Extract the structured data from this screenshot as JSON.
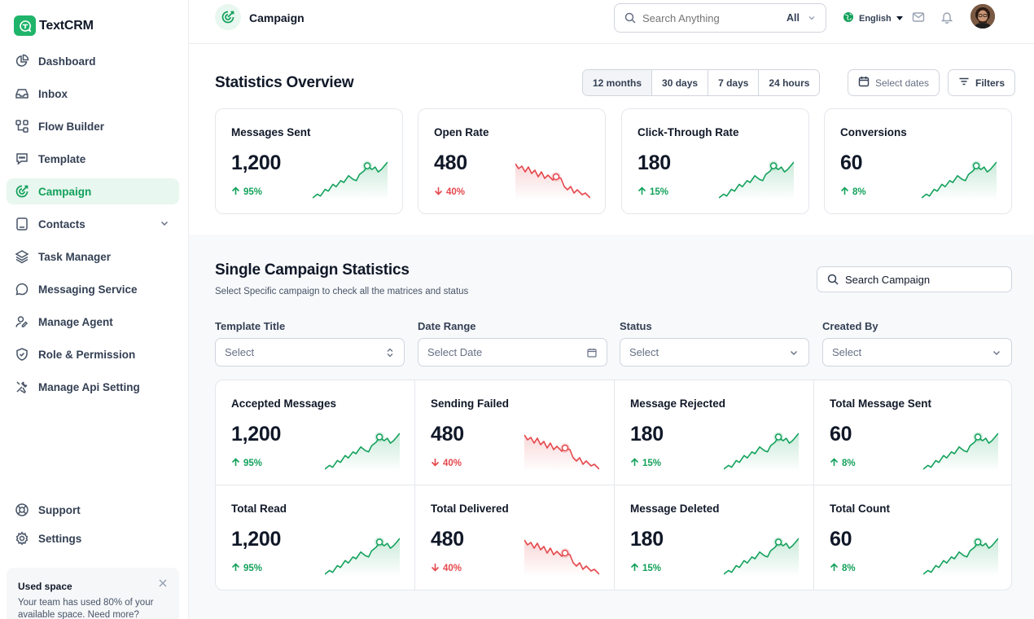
{
  "app": {
    "name": "TextCRM"
  },
  "sidebar": {
    "items": [
      {
        "label": "Dashboard",
        "icon": "pie-chart-icon"
      },
      {
        "label": "Inbox",
        "icon": "inbox-icon"
      },
      {
        "label": "Flow Builder",
        "icon": "flow-icon"
      },
      {
        "label": "Template",
        "icon": "message-icon"
      },
      {
        "label": "Campaign",
        "icon": "campaign-icon",
        "active": true
      },
      {
        "label": "Contacts",
        "icon": "contacts-icon",
        "has_children": true
      },
      {
        "label": "Task Manager",
        "icon": "layers-icon"
      },
      {
        "label": "Messaging Service",
        "icon": "chat-icon"
      },
      {
        "label": "Manage Agent",
        "icon": "agent-icon"
      },
      {
        "label": "Role & Permission",
        "icon": "shield-icon"
      },
      {
        "label": "Manage Api Setting",
        "icon": "tools-icon"
      }
    ],
    "bottom": [
      {
        "label": "Support",
        "icon": "lifebuoy-icon"
      },
      {
        "label": "Settings",
        "icon": "gear-icon"
      }
    ],
    "used_space": {
      "title": "Used space",
      "text": "Your team has used 80% of your available space. Need more?"
    }
  },
  "header": {
    "title": "Campaign",
    "search_placeholder": "Search Anything",
    "search_scope": "All",
    "language": "English"
  },
  "overview": {
    "title": "Statistics Overview",
    "ranges": [
      "12 months",
      "30 days",
      "7 days",
      "24 hours"
    ],
    "active_range": "12 months",
    "select_dates": "Select dates",
    "filters": "Filters",
    "cards": [
      {
        "title": "Messages Sent",
        "value": "1,200",
        "delta": "95%",
        "trend": "up"
      },
      {
        "title": "Open Rate",
        "value": "480",
        "delta": "40%",
        "trend": "down"
      },
      {
        "title": "Click-Through Rate",
        "value": "180",
        "delta": "15%",
        "trend": "up"
      },
      {
        "title": "Conversions",
        "value": "60",
        "delta": "8%",
        "trend": "up"
      }
    ]
  },
  "campaign": {
    "title": "Single Campaign Statistics",
    "subtitle": "Select Specific campaign to check all the matrices and status",
    "search_placeholder": "Search Campaign",
    "filters": [
      {
        "label": "Template Title",
        "placeholder": "Select",
        "icon": "updown-icon"
      },
      {
        "label": "Date Range",
        "placeholder": "Select Date",
        "icon": "calendar-icon"
      },
      {
        "label": "Status",
        "placeholder": "Select",
        "icon": "chevron-down-icon"
      },
      {
        "label": "Created By",
        "placeholder": "Select",
        "icon": "chevron-down-icon"
      }
    ],
    "cards": [
      {
        "title": "Accepted Messages",
        "value": "1,200",
        "delta": "95%",
        "trend": "up"
      },
      {
        "title": "Sending Failed",
        "value": "480",
        "delta": "40%",
        "trend": "down"
      },
      {
        "title": "Message Rejected",
        "value": "180",
        "delta": "15%",
        "trend": "up"
      },
      {
        "title": "Total Message Sent",
        "value": "60",
        "delta": "8%",
        "trend": "up"
      },
      {
        "title": "Total Read",
        "value": "1,200",
        "delta": "95%",
        "trend": "up"
      },
      {
        "title": "Total Delivered",
        "value": "480",
        "delta": "40%",
        "trend": "down"
      },
      {
        "title": "Message Deleted",
        "value": "180",
        "delta": "15%",
        "trend": "up"
      },
      {
        "title": "Total Count",
        "value": "60",
        "delta": "8%",
        "trend": "up"
      }
    ]
  },
  "colors": {
    "accent": "#12a15b",
    "up": "#12a15b",
    "down": "#e5484d"
  }
}
